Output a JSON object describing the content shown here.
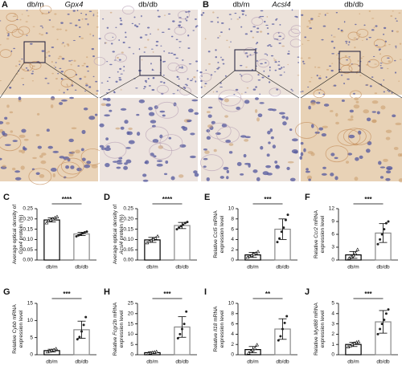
{
  "figure": {
    "panel_a": {
      "label": "A",
      "left": "db/m",
      "gene": "Gpx4",
      "right": "db/db"
    },
    "panel_b": {
      "label": "B",
      "left": "db/m",
      "gene": "Acsl4",
      "right": "db/db"
    }
  },
  "chart_data": [
    {
      "type": "bar",
      "label": "C",
      "ylabel": [
        [
          {
            "text": "Average optical density of"
          }
        ],
        [
          {
            "gene": "Gpx4"
          },
          {
            "text": " protein (%)"
          }
        ]
      ],
      "categories": [
        "db/m",
        "db/db"
      ],
      "values": [
        0.195,
        0.127
      ],
      "errors": [
        0.01,
        0.008
      ],
      "points": [
        [
          0.18,
          0.19,
          0.195,
          0.2,
          0.205,
          0.21
        ],
        [
          0.115,
          0.12,
          0.125,
          0.13,
          0.135,
          0.138
        ]
      ],
      "significance": "****",
      "ylim": [
        0,
        0.25
      ],
      "yticks": [
        {
          "value": 0,
          "label": "0.00"
        },
        0.05,
        {
          "value": 0.1,
          "label": "0.10"
        },
        0.15,
        {
          "value": 0.2,
          "label": "0.20"
        },
        0.25
      ]
    },
    {
      "type": "bar",
      "label": "D",
      "ylabel": [
        [
          {
            "text": "Average optical density of"
          }
        ],
        [
          {
            "gene": "Acsl4"
          },
          {
            "text": " protein (%)"
          }
        ]
      ],
      "categories": [
        "db/m",
        "db/db"
      ],
      "values": [
        0.098,
        0.168
      ],
      "errors": [
        0.012,
        0.015
      ],
      "points": [
        [
          0.083,
          0.09,
          0.095,
          0.1,
          0.105,
          0.115
        ],
        [
          0.15,
          0.158,
          0.165,
          0.172,
          0.18,
          0.185
        ]
      ],
      "significance": "****",
      "ylim": [
        0,
        0.25
      ],
      "yticks": [
        {
          "value": 0,
          "label": "0.00"
        },
        0.05,
        {
          "value": 0.1,
          "label": "0.10"
        },
        0.15,
        {
          "value": 0.2,
          "label": "0.20"
        },
        0.25
      ]
    },
    {
      "type": "bar",
      "label": "E",
      "ylabel": [
        [
          {
            "text": "Relative "
          },
          {
            "gene": "Ccl5"
          },
          {
            "text": " mRNA"
          }
        ],
        [
          {
            "text": "expression level"
          }
        ]
      ],
      "categories": [
        "db/m",
        "db/db"
      ],
      "values": [
        1.0,
        6.0
      ],
      "errors": [
        0.5,
        2.0
      ],
      "points": [
        [
          0.5,
          0.7,
          0.9,
          1.1,
          1.3,
          1.6
        ],
        [
          3.5,
          4.2,
          5.5,
          6.3,
          7.8,
          8.8
        ]
      ],
      "significance": "***",
      "ylim": [
        0,
        10
      ],
      "yticks": [
        0,
        2,
        4,
        6,
        8,
        10
      ]
    },
    {
      "type": "bar",
      "label": "F",
      "ylabel": [
        [
          {
            "text": "Relative "
          },
          {
            "gene": "Ccr2"
          },
          {
            "text": " mRNA"
          }
        ],
        [
          {
            "text": "expression level"
          }
        ]
      ],
      "categories": [
        "db/m",
        "db/db"
      ],
      "values": [
        1.2,
        6.3
      ],
      "errors": [
        0.8,
        2.2
      ],
      "points": [
        [
          0.4,
          0.7,
          1.0,
          1.5,
          2.4
        ],
        [
          3.7,
          4.8,
          6.0,
          7.2,
          8.6,
          9.0
        ]
      ],
      "significance": "***",
      "ylim": [
        0,
        12
      ],
      "yticks": [
        0,
        3,
        6,
        9,
        12
      ]
    },
    {
      "type": "bar",
      "label": "G",
      "ylabel": [
        [
          {
            "text": "Relative "
          },
          {
            "gene": "Cybb"
          },
          {
            "text": " mRNA"
          }
        ],
        [
          {
            "text": "expression level"
          }
        ]
      ],
      "categories": [
        "db/m",
        "db/db"
      ],
      "values": [
        1.2,
        7.3
      ],
      "errors": [
        0.4,
        2.5
      ],
      "points": [
        [
          0.8,
          1.0,
          1.2,
          1.4,
          1.7
        ],
        [
          4.5,
          5.2,
          6.8,
          8.7,
          11.0
        ]
      ],
      "significance": "***",
      "ylim": [
        0,
        15
      ],
      "yticks": [
        0,
        5,
        10,
        15
      ]
    },
    {
      "type": "bar",
      "label": "H",
      "ylabel": [
        [
          {
            "text": "Relative "
          },
          {
            "gene": "Fcgr2b"
          },
          {
            "text": " mRNA"
          }
        ],
        [
          {
            "text": "expression level"
          }
        ]
      ],
      "categories": [
        "db/m",
        "db/db"
      ],
      "values": [
        1.0,
        13.5
      ],
      "errors": [
        0.4,
        5.0
      ],
      "points": [
        [
          0.6,
          0.8,
          1.0,
          1.2,
          1.4
        ],
        [
          8.0,
          10.0,
          12.5,
          15.0,
          21.0
        ]
      ],
      "significance": "***",
      "ylim": [
        0,
        25
      ],
      "yticks": [
        0,
        5,
        10,
        15,
        20,
        25
      ]
    },
    {
      "type": "bar",
      "label": "I",
      "ylabel": [
        [
          {
            "text": "Relative "
          },
          {
            "gene": "Il18"
          },
          {
            "text": " mRNA"
          }
        ],
        [
          {
            "text": "expression level"
          }
        ]
      ],
      "categories": [
        "db/m",
        "db/db"
      ],
      "values": [
        1.0,
        5.0
      ],
      "errors": [
        0.6,
        2.0
      ],
      "points": [
        [
          0.3,
          0.6,
          0.9,
          1.2,
          1.9
        ],
        [
          2.8,
          3.6,
          5.0,
          6.2,
          7.5
        ]
      ],
      "significance": "**",
      "ylim": [
        0,
        10
      ],
      "yticks": [
        0,
        2,
        4,
        6,
        8,
        10
      ]
    },
    {
      "type": "bar",
      "label": "J",
      "ylabel": [
        [
          {
            "text": "Relative "
          },
          {
            "gene": "Myd88"
          },
          {
            "text": " mRNA"
          }
        ],
        [
          {
            "text": "expression level"
          }
        ]
      ],
      "categories": [
        "db/m",
        "db/db"
      ],
      "values": [
        1.0,
        3.2
      ],
      "errors": [
        0.2,
        1.1
      ],
      "points": [
        [
          0.75,
          0.85,
          1.0,
          1.1,
          1.2,
          1.25
        ],
        [
          2.0,
          2.5,
          3.0,
          3.4,
          4.0,
          4.4
        ]
      ],
      "significance": "***",
      "ylim": [
        0,
        5
      ],
      "yticks": [
        0,
        1,
        2,
        3,
        4,
        5
      ]
    }
  ]
}
